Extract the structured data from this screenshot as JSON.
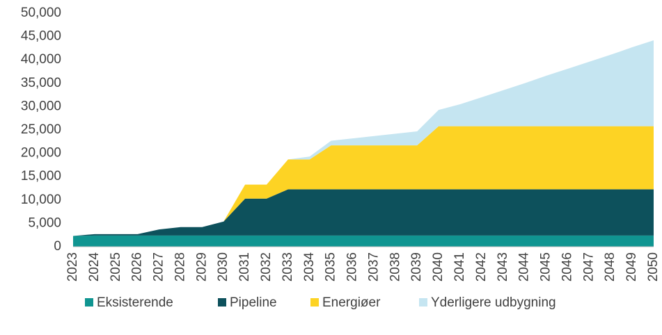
{
  "chart_data": {
    "type": "stacked_area",
    "categories": [
      "2023",
      "2024",
      "2025",
      "2026",
      "2027",
      "2028",
      "2029",
      "2030",
      "2031",
      "2032",
      "2033",
      "2034",
      "2035",
      "2036",
      "2037",
      "2038",
      "2039",
      "2040",
      "2041",
      "2042",
      "2043",
      "2044",
      "2045",
      "2046",
      "2047",
      "2048",
      "2049",
      "2050"
    ],
    "series": [
      {
        "name": "Eksisterende",
        "color": "#109591",
        "values": [
          2300,
          2400,
          2400,
          2400,
          2400,
          2400,
          2400,
          2400,
          2400,
          2400,
          2400,
          2400,
          2400,
          2400,
          2400,
          2400,
          2400,
          2400,
          2400,
          2400,
          2400,
          2400,
          2400,
          2400,
          2400,
          2400,
          2400,
          2400
        ]
      },
      {
        "name": "Pipeline",
        "color": "#0d515c",
        "values": [
          0,
          300,
          300,
          300,
          1300,
          1800,
          1800,
          3000,
          7900,
          7900,
          9900,
          9900,
          9900,
          9900,
          9900,
          9900,
          9900,
          9900,
          9900,
          9900,
          9900,
          9900,
          9900,
          9900,
          9900,
          9900,
          9900,
          9900
        ]
      },
      {
        "name": "Energiøer",
        "color": "#fdd324",
        "values": [
          0,
          0,
          0,
          0,
          0,
          0,
          0,
          0,
          3000,
          3000,
          6400,
          6400,
          9400,
          9400,
          9400,
          9400,
          9400,
          13500,
          13500,
          13500,
          13500,
          13500,
          13500,
          13500,
          13500,
          13500,
          13500,
          13500
        ]
      },
      {
        "name": "Yderligere udbygning",
        "color": "#c5e5f1",
        "values": [
          0,
          0,
          0,
          0,
          0,
          0,
          0,
          0,
          0,
          0,
          0,
          600,
          1000,
          1500,
          2000,
          2500,
          3000,
          3500,
          4700,
          6200,
          7700,
          9200,
          10800,
          12300,
          13800,
          15300,
          16900,
          18400
        ]
      }
    ],
    "ylim": [
      0,
      50000
    ],
    "yticks": [
      0,
      {
        "value": 5000,
        "label": "5,000"
      },
      {
        "value": 10000,
        "label": "10,000"
      },
      {
        "value": 15000,
        "label": "15,000"
      },
      {
        "value": 20000,
        "label": "20,000"
      },
      {
        "value": 25000,
        "label": "25,000"
      },
      {
        "value": 30000,
        "label": "30,000"
      },
      {
        "value": 35000,
        "label": "35,000"
      },
      {
        "value": 40000,
        "label": "40,000"
      },
      {
        "value": 45000,
        "label": "45,000"
      },
      {
        "value": 50000,
        "label": "50,000"
      }
    ],
    "legend": "bottom"
  }
}
